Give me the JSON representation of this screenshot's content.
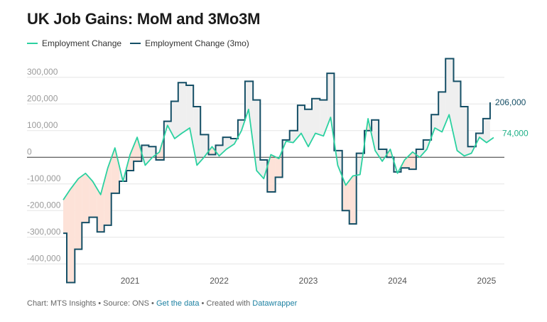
{
  "title": "UK Job Gains: MoM and 3Mo3M",
  "legend": [
    {
      "label": "Employment Change",
      "color": "#2bd1a0"
    },
    {
      "label": "Employment Change (3mo)",
      "color": "#154f66"
    }
  ],
  "footer": {
    "prefix": "Chart: MTS Insights • Source: ONS • ",
    "link1": "Get the data",
    "middle": " • Created with ",
    "link2": "Datawrapper"
  },
  "chart_data": {
    "type": "line",
    "title": "UK Job Gains: MoM and 3Mo3M",
    "xlabel": "",
    "ylabel": "",
    "x_range": [
      2020.25,
      2025.2
    ],
    "ylim": [
      -450000,
      350000
    ],
    "y_ticks": [
      {
        "value": 300000,
        "label": "300,000"
      },
      {
        "value": 200000,
        "label": "200,000"
      },
      {
        "value": 100000,
        "label": "100,000"
      },
      {
        "value": 0,
        "label": "0"
      },
      {
        "value": -100000,
        "label": "-100,000"
      },
      {
        "value": -200000,
        "label": "-200,000"
      },
      {
        "value": -300000,
        "label": "-300,000"
      },
      {
        "value": -400000,
        "label": "-400,000"
      }
    ],
    "x_ticks": [
      {
        "value": 2021,
        "label": "2021"
      },
      {
        "value": 2022,
        "label": "2022"
      },
      {
        "value": 2023,
        "label": "2023"
      },
      {
        "value": 2024,
        "label": "2024"
      },
      {
        "value": 2025,
        "label": "2025"
      }
    ],
    "series": [
      {
        "name": "Employment Change",
        "color": "#2bd1a0",
        "end_label": "74,000",
        "points": [
          [
            2020.25,
            -160000
          ],
          [
            2020.33,
            -120000
          ],
          [
            2020.42,
            -80000
          ],
          [
            2020.5,
            -60000
          ],
          [
            2020.58,
            -90000
          ],
          [
            2020.67,
            -140000
          ],
          [
            2020.75,
            -40000
          ],
          [
            2020.83,
            35000
          ],
          [
            2020.92,
            -90000
          ],
          [
            2021.0,
            10000
          ],
          [
            2021.08,
            75000
          ],
          [
            2021.17,
            -30000
          ],
          [
            2021.25,
            0
          ],
          [
            2021.33,
            20000
          ],
          [
            2021.42,
            120000
          ],
          [
            2021.5,
            70000
          ],
          [
            2021.58,
            90000
          ],
          [
            2021.67,
            110000
          ],
          [
            2021.75,
            -30000
          ],
          [
            2021.83,
            0
          ],
          [
            2021.92,
            40000
          ],
          [
            2022.0,
            5000
          ],
          [
            2022.08,
            30000
          ],
          [
            2022.17,
            50000
          ],
          [
            2022.25,
            100000
          ],
          [
            2022.33,
            180000
          ],
          [
            2022.42,
            -50000
          ],
          [
            2022.5,
            -80000
          ],
          [
            2022.58,
            10000
          ],
          [
            2022.67,
            -5000
          ],
          [
            2022.75,
            60000
          ],
          [
            2022.83,
            55000
          ],
          [
            2022.92,
            90000
          ],
          [
            2023.0,
            40000
          ],
          [
            2023.08,
            90000
          ],
          [
            2023.17,
            80000
          ],
          [
            2023.25,
            150000
          ],
          [
            2023.33,
            -30000
          ],
          [
            2023.42,
            -105000
          ],
          [
            2023.5,
            -70000
          ],
          [
            2023.58,
            -65000
          ],
          [
            2023.67,
            145000
          ],
          [
            2023.75,
            25000
          ],
          [
            2023.83,
            -15000
          ],
          [
            2023.92,
            30000
          ],
          [
            2024.0,
            -60000
          ],
          [
            2024.08,
            -10000
          ],
          [
            2024.17,
            20000
          ],
          [
            2024.25,
            0
          ],
          [
            2024.33,
            30000
          ],
          [
            2024.42,
            110000
          ],
          [
            2024.5,
            95000
          ],
          [
            2024.58,
            160000
          ],
          [
            2024.67,
            25000
          ],
          [
            2024.75,
            5000
          ],
          [
            2024.83,
            15000
          ],
          [
            2024.92,
            75000
          ],
          [
            2025.0,
            55000
          ],
          [
            2025.08,
            74000
          ]
        ]
      },
      {
        "name": "Employment Change (3mo)",
        "color": "#154f66",
        "end_label": "206,000",
        "points": [
          [
            2020.25,
            -285000
          ],
          [
            2020.29,
            -470000
          ],
          [
            2020.38,
            -345000
          ],
          [
            2020.46,
            -245000
          ],
          [
            2020.54,
            -225000
          ],
          [
            2020.63,
            -280000
          ],
          [
            2020.71,
            -255000
          ],
          [
            2020.79,
            -135000
          ],
          [
            2020.88,
            -90000
          ],
          [
            2020.96,
            -50000
          ],
          [
            2021.04,
            -15000
          ],
          [
            2021.13,
            45000
          ],
          [
            2021.21,
            40000
          ],
          [
            2021.29,
            -10000
          ],
          [
            2021.38,
            135000
          ],
          [
            2021.46,
            210000
          ],
          [
            2021.54,
            280000
          ],
          [
            2021.63,
            270000
          ],
          [
            2021.71,
            190000
          ],
          [
            2021.79,
            85000
          ],
          [
            2021.88,
            10000
          ],
          [
            2021.96,
            45000
          ],
          [
            2022.04,
            75000
          ],
          [
            2022.13,
            70000
          ],
          [
            2022.21,
            140000
          ],
          [
            2022.29,
            285000
          ],
          [
            2022.38,
            215000
          ],
          [
            2022.46,
            -10000
          ],
          [
            2022.54,
            -130000
          ],
          [
            2022.63,
            -75000
          ],
          [
            2022.71,
            65000
          ],
          [
            2022.79,
            100000
          ],
          [
            2022.88,
            195000
          ],
          [
            2022.96,
            180000
          ],
          [
            2023.04,
            220000
          ],
          [
            2023.13,
            215000
          ],
          [
            2023.21,
            315000
          ],
          [
            2023.29,
            25000
          ],
          [
            2023.38,
            -200000
          ],
          [
            2023.46,
            -250000
          ],
          [
            2023.54,
            15000
          ],
          [
            2023.63,
            100000
          ],
          [
            2023.71,
            140000
          ],
          [
            2023.79,
            30000
          ],
          [
            2023.88,
            0
          ],
          [
            2023.96,
            -55000
          ],
          [
            2024.04,
            -40000
          ],
          [
            2024.13,
            -45000
          ],
          [
            2024.21,
            30000
          ],
          [
            2024.29,
            65000
          ],
          [
            2024.38,
            160000
          ],
          [
            2024.46,
            245000
          ],
          [
            2024.54,
            370000
          ],
          [
            2024.63,
            285000
          ],
          [
            2024.71,
            190000
          ],
          [
            2024.79,
            40000
          ],
          [
            2024.88,
            90000
          ],
          [
            2024.96,
            145000
          ],
          [
            2025.04,
            206000
          ]
        ]
      }
    ]
  }
}
